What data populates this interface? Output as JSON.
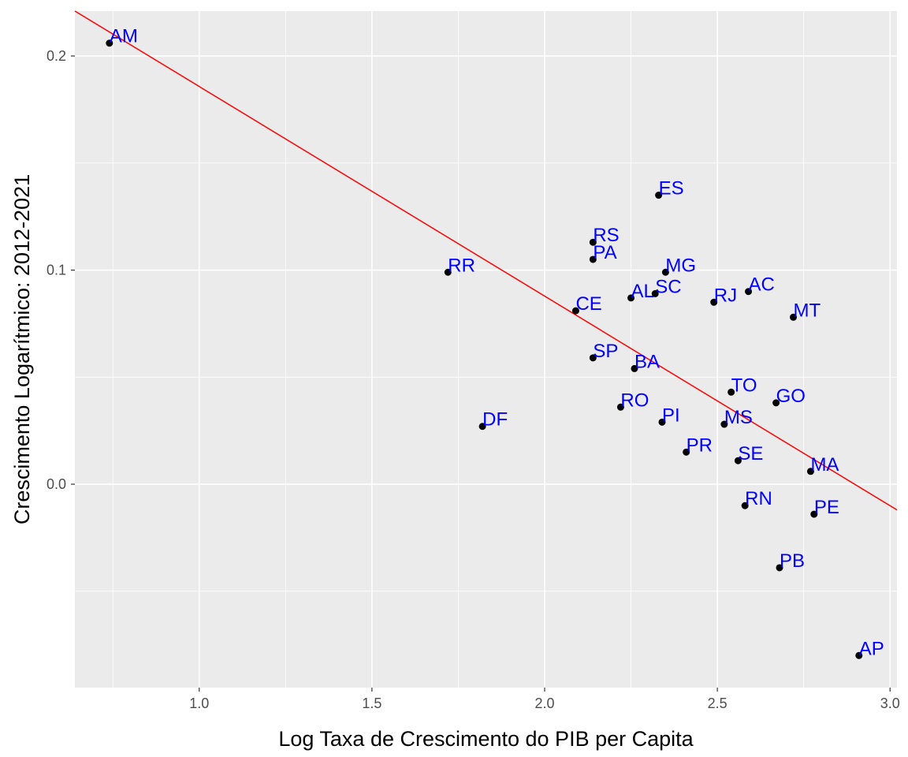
{
  "chart_data": {
    "type": "scatter",
    "title": "",
    "xlabel": "Log Taxa de Crescimento do PIB per Capita",
    "ylabel": "Crescimento Logarítmico: 2012-2021",
    "xlim": [
      0.64,
      3.02
    ],
    "ylim": [
      -0.095,
      0.221
    ],
    "x_ticks": [
      1.0,
      1.5,
      2.0,
      2.5,
      3.0
    ],
    "x_tick_labels": [
      "1.0",
      "1.5",
      "2.0",
      "2.5",
      "3.0"
    ],
    "y_ticks": [
      0.0,
      0.1,
      0.2
    ],
    "y_tick_labels": [
      "0.0",
      "0.1",
      "0.2"
    ],
    "grid": true,
    "legend": "none",
    "points": [
      {
        "label": "AM",
        "x": 0.74,
        "y": 0.206
      },
      {
        "label": "RR",
        "x": 1.72,
        "y": 0.099
      },
      {
        "label": "DF",
        "x": 1.82,
        "y": 0.027
      },
      {
        "label": "CE",
        "x": 2.09,
        "y": 0.081
      },
      {
        "label": "RS",
        "x": 2.14,
        "y": 0.113
      },
      {
        "label": "PA",
        "x": 2.14,
        "y": 0.105
      },
      {
        "label": "SP",
        "x": 2.14,
        "y": 0.059
      },
      {
        "label": "RO",
        "x": 2.22,
        "y": 0.036
      },
      {
        "label": "AL",
        "x": 2.25,
        "y": 0.087
      },
      {
        "label": "BA",
        "x": 2.26,
        "y": 0.054
      },
      {
        "label": "SC",
        "x": 2.32,
        "y": 0.089
      },
      {
        "label": "ES",
        "x": 2.33,
        "y": 0.135
      },
      {
        "label": "PI",
        "x": 2.34,
        "y": 0.029
      },
      {
        "label": "MG",
        "x": 2.35,
        "y": 0.099
      },
      {
        "label": "PR",
        "x": 2.41,
        "y": 0.015
      },
      {
        "label": "RJ",
        "x": 2.49,
        "y": 0.085
      },
      {
        "label": "MS",
        "x": 2.52,
        "y": 0.028
      },
      {
        "label": "TO",
        "x": 2.54,
        "y": 0.043
      },
      {
        "label": "SE",
        "x": 2.56,
        "y": 0.011
      },
      {
        "label": "RN",
        "x": 2.58,
        "y": -0.01
      },
      {
        "label": "AC",
        "x": 2.59,
        "y": 0.09
      },
      {
        "label": "GO",
        "x": 2.67,
        "y": 0.038
      },
      {
        "label": "PB",
        "x": 2.68,
        "y": -0.039
      },
      {
        "label": "MT",
        "x": 2.72,
        "y": 0.078
      },
      {
        "label": "MA",
        "x": 2.77,
        "y": 0.006
      },
      {
        "label": "PE",
        "x": 2.78,
        "y": -0.014
      },
      {
        "label": "AP",
        "x": 2.91,
        "y": -0.08
      }
    ],
    "fit_line": {
      "x": [
        0.64,
        3.02
      ],
      "y": [
        0.221,
        -0.012
      ]
    },
    "colors": {
      "panel_background": "#ebebeb",
      "grid": "#ffffff",
      "point": "#000000",
      "point_label": "#0000ff",
      "fit_line": "#ff0000"
    }
  }
}
